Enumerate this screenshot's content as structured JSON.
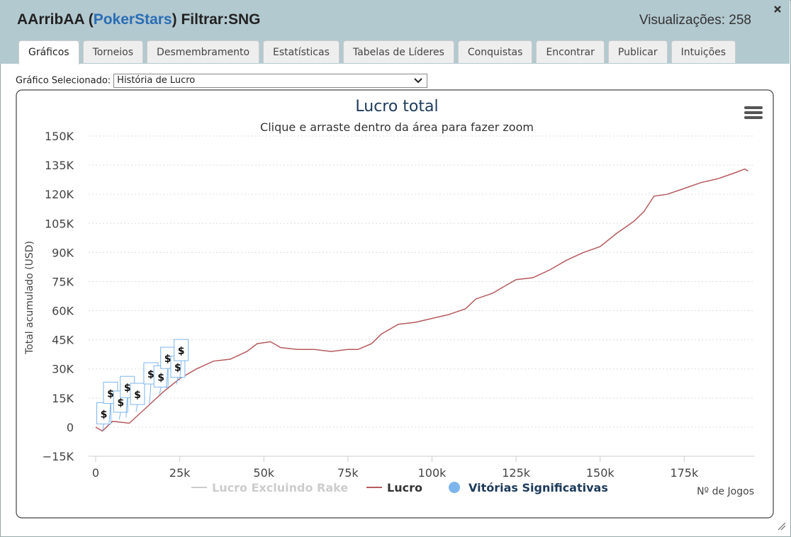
{
  "header": {
    "player": "AArribAA",
    "site": "PokerStars",
    "filter": "Filtrar:SNG",
    "views_label": "Visualizações:",
    "views": 258
  },
  "tabs": [
    "Gráficos",
    "Torneios",
    "Desmembramento",
    "Estatísticas",
    "Tabelas de Líderes",
    "Conquistas",
    "Encontrar",
    "Publicar",
    "Intuições"
  ],
  "active_tab": 0,
  "selector": {
    "label": "Gráfico Selecionado:",
    "value": "História de Lucro"
  },
  "chart_data": {
    "type": "line",
    "title": "Lucro total",
    "subtitle": "Clique e arraste dentro da área para fazer zoom",
    "x_label": "Nº de Jogos",
    "y_label": "Total acumulado (USD)",
    "xlim": [
      0,
      196000
    ],
    "xticks": [
      0,
      {
        "value": 25000,
        "label": "25k"
      },
      {
        "value": 50000,
        "label": "50k"
      },
      {
        "value": 75000,
        "label": "75k"
      },
      {
        "value": 100000,
        "label": "100k"
      },
      {
        "value": 125000,
        "label": "125k"
      },
      {
        "value": 150000,
        "label": "150k"
      },
      {
        "value": 175000,
        "label": "175k"
      }
    ],
    "ylim": [
      -15000,
      150000
    ],
    "yticks": [
      {
        "value": -15000,
        "label": "−15K"
      },
      0,
      {
        "value": 15000,
        "label": "15K"
      },
      {
        "value": 30000,
        "label": "30K"
      },
      {
        "value": 45000,
        "label": "45K"
      },
      {
        "value": 60000,
        "label": "60K"
      },
      {
        "value": 75000,
        "label": "75K"
      },
      {
        "value": 90000,
        "label": "90K"
      },
      {
        "value": 105000,
        "label": "105K"
      },
      {
        "value": 120000,
        "label": "120K"
      },
      {
        "value": 135000,
        "label": "135K"
      },
      {
        "value": 150000,
        "label": "150K"
      }
    ],
    "grid": true,
    "series": [
      {
        "name": "Lucro Excluindo Rake",
        "color": "#cccccc",
        "visible": false
      },
      {
        "name": "Lucro",
        "color": "#b55a5e",
        "x": [
          0,
          2000,
          5000,
          10000,
          15000,
          20000,
          25000,
          30000,
          35000,
          40000,
          45000,
          48000,
          52000,
          55000,
          60000,
          65000,
          70000,
          75000,
          78000,
          82000,
          85000,
          90000,
          95000,
          100000,
          105000,
          110000,
          113000,
          118000,
          122000,
          125000,
          130000,
          135000,
          140000,
          145000,
          150000,
          155000,
          160000,
          163000,
          166000,
          170000,
          175000,
          180000,
          185000,
          190000,
          193000,
          194000
        ],
        "values": [
          0,
          -2000,
          3000,
          2000,
          10000,
          18000,
          25000,
          30000,
          34000,
          35000,
          39000,
          43000,
          44000,
          41000,
          40000,
          40000,
          39000,
          40000,
          40000,
          43000,
          48000,
          53000,
          54000,
          56000,
          58000,
          61000,
          66000,
          69000,
          73000,
          76000,
          77000,
          81000,
          86000,
          90000,
          93000,
          100000,
          106000,
          111000,
          119000,
          120000,
          123000,
          126000,
          128000,
          131000,
          133000,
          132000
        ]
      },
      {
        "name": "Vitórias Significativas",
        "color": "#7cb5ec",
        "flag_label": "$",
        "x": [
          2000,
          4000,
          7000,
          9000,
          12000,
          16000,
          19000,
          21000,
          24000,
          25000
        ],
        "values": [
          -2000,
          2000,
          4000,
          5000,
          8000,
          12000,
          17000,
          20000,
          22000,
          24000
        ]
      }
    ]
  }
}
